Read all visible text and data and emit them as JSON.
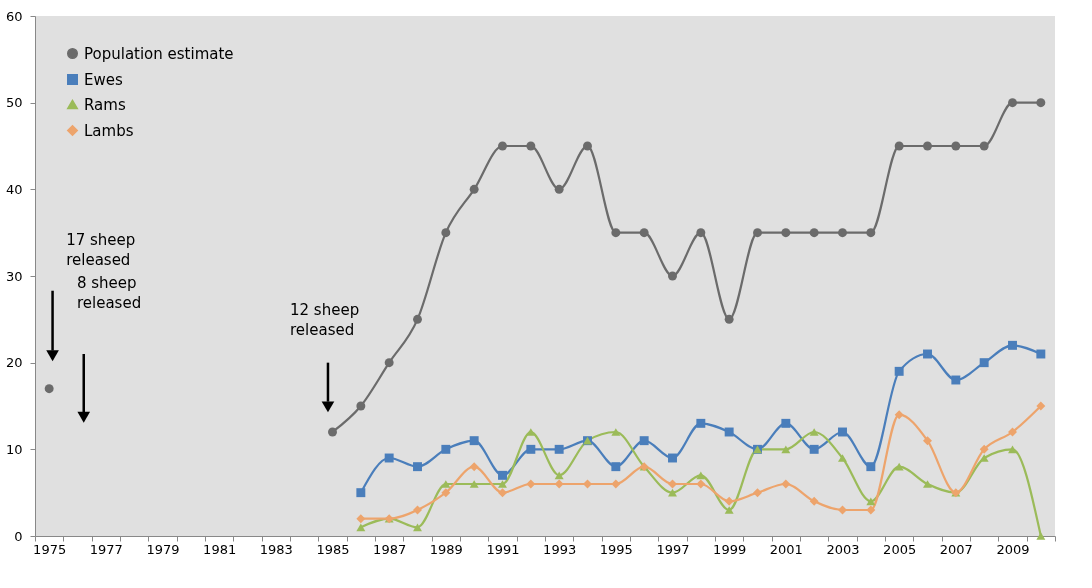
{
  "chart_data": {
    "type": "line",
    "categories": [
      "1975",
      null,
      "1977",
      null,
      "1979",
      null,
      "1981",
      null,
      "1983",
      null,
      "1985",
      null,
      "1987",
      null,
      "1989",
      null,
      "1991",
      null,
      "1993",
      null,
      "1995",
      null,
      "1997",
      null,
      "1999",
      null,
      "2001",
      null,
      "2003",
      null,
      "2005",
      null,
      "2007",
      null,
      "2009",
      null
    ],
    "series": [
      {
        "name": "Population estimate",
        "color": "#6b6b6b",
        "marker": "circle",
        "values": [
          17,
          null,
          null,
          null,
          null,
          null,
          null,
          null,
          null,
          null,
          12,
          15,
          20,
          25,
          35,
          40,
          45,
          45,
          40,
          45,
          35,
          35,
          30,
          35,
          25,
          35,
          35,
          35,
          35,
          35,
          45,
          45,
          45,
          45,
          50,
          50
        ]
      },
      {
        "name": "Ewes",
        "color": "#4a7ebb",
        "marker": "square",
        "values": [
          null,
          null,
          null,
          null,
          null,
          null,
          null,
          null,
          null,
          null,
          null,
          5,
          9,
          8,
          10,
          11,
          7,
          10,
          10,
          11,
          8,
          11,
          9,
          13,
          12,
          10,
          13,
          10,
          12,
          8,
          19,
          21,
          18,
          20,
          22,
          21
        ]
      },
      {
        "name": "Rams",
        "color": "#9bbb59",
        "marker": "triangle",
        "values": [
          null,
          null,
          null,
          null,
          null,
          null,
          null,
          null,
          null,
          null,
          null,
          1,
          2,
          1,
          6,
          6,
          6,
          12,
          7,
          11,
          12,
          8,
          5,
          7,
          3,
          10,
          10,
          12,
          9,
          4,
          8,
          6,
          5,
          9,
          10,
          0
        ]
      },
      {
        "name": "Lambs",
        "color": "#eda46c",
        "marker": "diamond",
        "values": [
          null,
          null,
          null,
          null,
          null,
          null,
          null,
          null,
          null,
          null,
          null,
          2,
          2,
          3,
          5,
          8,
          5,
          6,
          6,
          6,
          6,
          8,
          6,
          6,
          4,
          5,
          6,
          4,
          3,
          3,
          14,
          11,
          5,
          10,
          12,
          15
        ]
      }
    ],
    "ylim": [
      0,
      60
    ],
    "yticks": [
      0,
      10,
      20,
      30,
      40,
      50,
      60
    ],
    "grid": false,
    "legend": "top left",
    "annotations": [
      "17 sheep released",
      "8 sheep released",
      "12 sheep released"
    ]
  }
}
